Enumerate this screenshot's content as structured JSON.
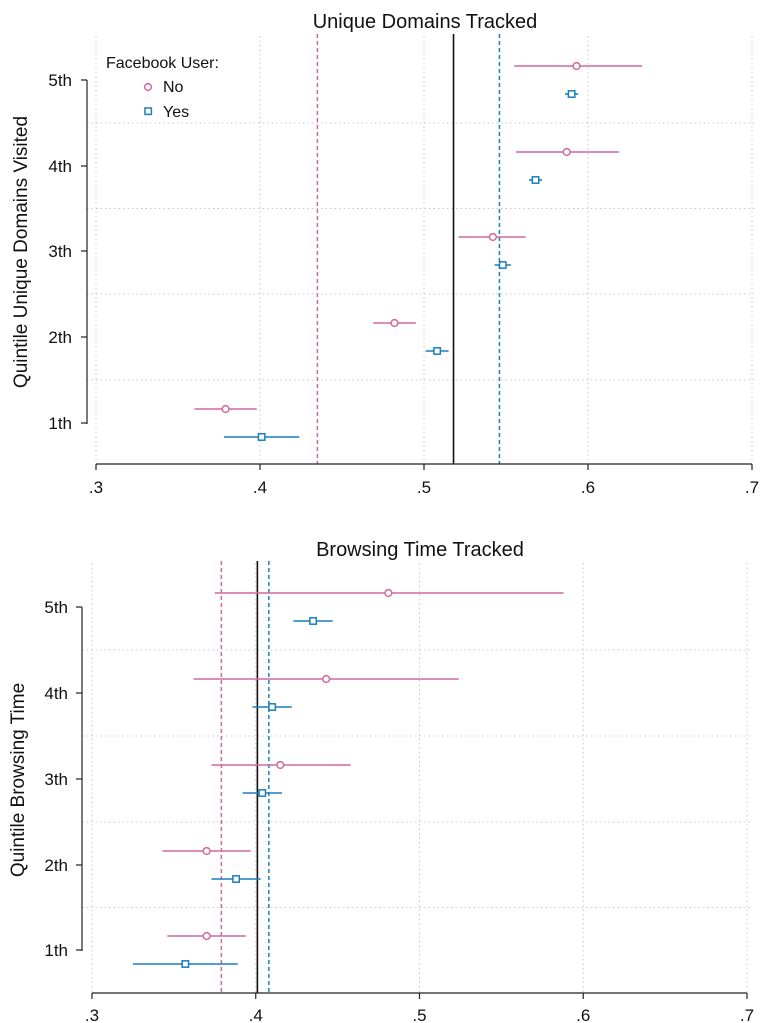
{
  "legend": {
    "title": "Facebook User:",
    "items": [
      "No",
      "Yes"
    ]
  },
  "colors": {
    "no": "#d1689b",
    "yes": "#1a7fbd",
    "overall": "#111111"
  },
  "chart_data": [
    {
      "type": "scatter",
      "title": "Unique Domains Tracked",
      "ylabel": "Quintile Unique Domains Visited",
      "xlim": [
        0.3,
        0.7
      ],
      "xticks": [
        0.3,
        0.4,
        0.5,
        0.6,
        0.7
      ],
      "xtick_labels": [
        ".3",
        ".4",
        ".5",
        ".6",
        ".7"
      ],
      "categories": [
        "1th",
        "2th",
        "3th",
        "4th",
        "5th"
      ],
      "grid": true,
      "legend_position": "top-left",
      "overall_line": 0.518,
      "series": [
        {
          "name": "No",
          "marker": "circle",
          "values": [
            0.379,
            0.482,
            0.542,
            0.587,
            0.593
          ],
          "ci_low": [
            0.36,
            0.469,
            0.521,
            0.556,
            0.555
          ],
          "ci_high": [
            0.398,
            0.495,
            0.562,
            0.619,
            0.633
          ],
          "mean_line": 0.435
        },
        {
          "name": "Yes",
          "marker": "square",
          "values": [
            0.401,
            0.508,
            0.548,
            0.568,
            0.59
          ],
          "ci_low": [
            0.378,
            0.501,
            0.543,
            0.564,
            0.586
          ],
          "ci_high": [
            0.424,
            0.515,
            0.553,
            0.572,
            0.594
          ],
          "mean_line": 0.546
        }
      ]
    },
    {
      "type": "scatter",
      "title": "Browsing Time Tracked",
      "ylabel": "Quintile Browsing Time",
      "xlim": [
        0.3,
        0.7
      ],
      "xticks": [
        0.3,
        0.4,
        0.5,
        0.6,
        0.7
      ],
      "xtick_labels": [
        ".3",
        ".4",
        ".5",
        ".6",
        ".7"
      ],
      "categories": [
        "1th",
        "2th",
        "3th",
        "4th",
        "5th"
      ],
      "grid": true,
      "overall_line": 0.401,
      "series": [
        {
          "name": "No",
          "marker": "circle",
          "values": [
            0.37,
            0.37,
            0.415,
            0.443,
            0.481
          ],
          "ci_low": [
            0.346,
            0.343,
            0.373,
            0.362,
            0.375
          ],
          "ci_high": [
            0.394,
            0.397,
            0.458,
            0.524,
            0.588
          ],
          "mean_line": 0.379
        },
        {
          "name": "Yes",
          "marker": "square",
          "values": [
            0.357,
            0.388,
            0.404,
            0.41,
            0.435
          ],
          "ci_low": [
            0.325,
            0.373,
            0.392,
            0.398,
            0.423
          ],
          "ci_high": [
            0.389,
            0.403,
            0.416,
            0.422,
            0.447
          ],
          "mean_line": 0.408
        }
      ]
    }
  ]
}
